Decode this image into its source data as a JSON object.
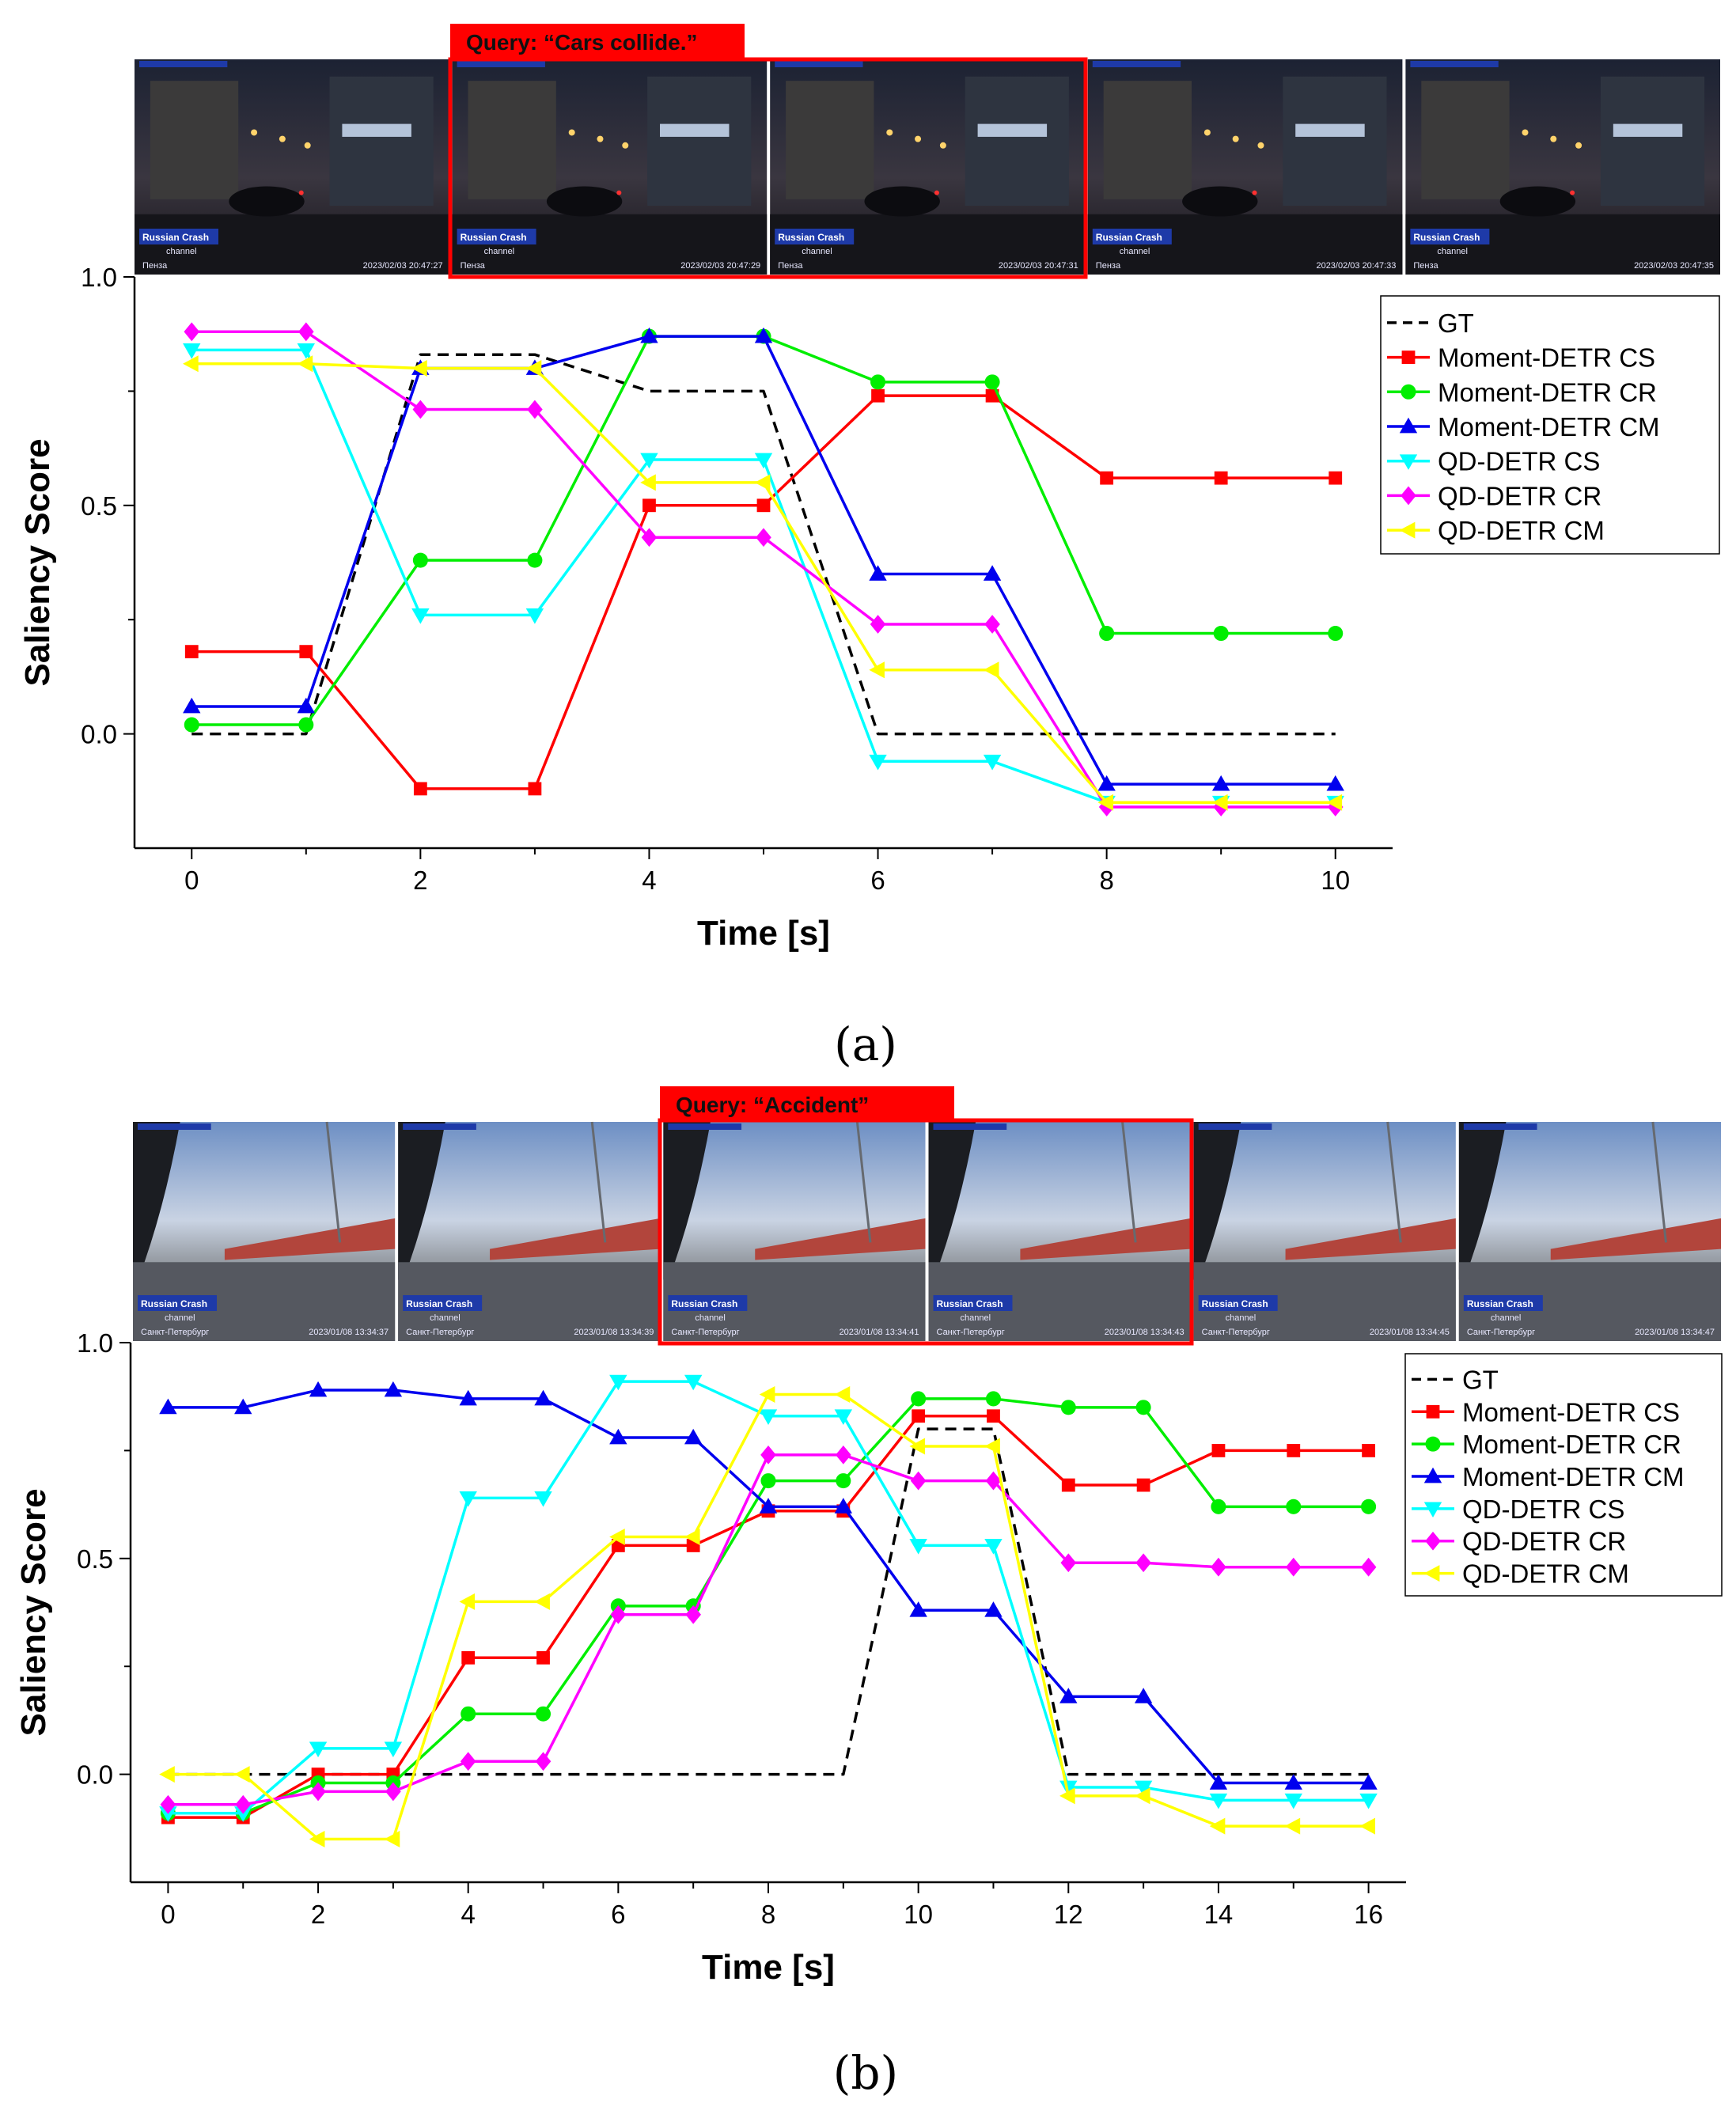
{
  "colors": {
    "GT": "#000000",
    "Moment-DETR CS": "#ff0000",
    "Moment-DETR CR": "#00ee00",
    "Moment-DETR CM": "#0000ee",
    "QD-DETR CS": "#00ffff",
    "QD-DETR CR": "#ff00ff",
    "QD-DETR CM": "#ffff00"
  },
  "panels": [
    {
      "label": "(a)",
      "query": "Query: “Cars collide.”",
      "frames": {
        "scene": "night",
        "brand": "Russian Crash",
        "channel": "channel",
        "location": "Пенза",
        "stamps": [
          "2023/02/03 20:47:27",
          "2023/02/03 20:47:29",
          "2023/02/03 20:47:31",
          "2023/02/03 20:47:33",
          "2023/02/03 20:47:35"
        ]
      }
    },
    {
      "label": "(b)",
      "query": "Query: “Accident”",
      "frames": {
        "scene": "day",
        "brand": "Russian Crash",
        "channel": "channel",
        "location": "Санкт-Петербург",
        "stamps": [
          "2023/01/08 13:34:37",
          "2023/01/08 13:34:39",
          "2023/01/08 13:34:41",
          "2023/01/08 13:34:43",
          "2023/01/08 13:34:45",
          "2023/01/08 13:34:47"
        ]
      }
    }
  ],
  "chart_data": [
    {
      "type": "line",
      "title": "",
      "xlabel": "Time [s]",
      "ylabel": "Saliency Score",
      "xlim": [
        -0.5,
        10.5
      ],
      "ylim": [
        -0.25,
        1.0
      ],
      "xticks": [
        0,
        2,
        4,
        6,
        8,
        10
      ],
      "yticks": [
        0.0,
        0.5,
        1.0
      ],
      "ytick_labels": [
        "0.0",
        "0.5",
        "1.0"
      ],
      "legend_position": "top-right",
      "x": [
        0,
        1,
        2,
        3,
        4,
        5,
        6,
        7,
        8,
        9,
        10
      ],
      "series": [
        {
          "name": "GT",
          "style": "dashed",
          "marker": "none",
          "values": [
            0,
            0,
            0.83,
            0.83,
            0.75,
            0.75,
            0,
            0,
            0,
            0,
            0
          ]
        },
        {
          "name": "Moment-DETR CS",
          "style": "solid",
          "marker": "square",
          "values": [
            0.18,
            0.18,
            -0.12,
            -0.12,
            0.5,
            0.5,
            0.74,
            0.74,
            0.56,
            0.56,
            0.56
          ]
        },
        {
          "name": "Moment-DETR CR",
          "style": "solid",
          "marker": "circle",
          "values": [
            0.02,
            0.02,
            0.38,
            0.38,
            0.87,
            0.87,
            0.77,
            0.77,
            0.22,
            0.22,
            0.22
          ]
        },
        {
          "name": "Moment-DETR CM",
          "style": "solid",
          "marker": "triangle-up",
          "values": [
            0.06,
            0.06,
            0.8,
            0.8,
            0.87,
            0.87,
            0.35,
            0.35,
            -0.11,
            -0.11,
            -0.11
          ]
        },
        {
          "name": "QD-DETR CS",
          "style": "solid",
          "marker": "triangle-down",
          "values": [
            0.84,
            0.84,
            0.26,
            0.26,
            0.6,
            0.6,
            -0.06,
            -0.06,
            -0.15,
            -0.15,
            -0.15
          ]
        },
        {
          "name": "QD-DETR CR",
          "style": "solid",
          "marker": "diamond",
          "values": [
            0.88,
            0.88,
            0.71,
            0.71,
            0.43,
            0.43,
            0.24,
            0.24,
            -0.16,
            -0.16,
            -0.16
          ]
        },
        {
          "name": "QD-DETR CM",
          "style": "solid",
          "marker": "triangle-left",
          "values": [
            0.81,
            0.81,
            0.8,
            0.8,
            0.55,
            0.55,
            0.14,
            0.14,
            -0.15,
            -0.15,
            -0.15
          ]
        }
      ]
    },
    {
      "type": "line",
      "title": "",
      "xlabel": "Time [s]",
      "ylabel": "Saliency Score",
      "xlim": [
        -0.5,
        16.5
      ],
      "ylim": [
        -0.25,
        1.0
      ],
      "xticks": [
        0,
        2,
        4,
        6,
        8,
        10,
        12,
        14,
        16
      ],
      "yticks": [
        0.0,
        0.5,
        1.0
      ],
      "ytick_labels": [
        "0.0",
        "0.5",
        "1.0"
      ],
      "legend_position": "top-right",
      "x": [
        0,
        1,
        2,
        3,
        4,
        5,
        6,
        7,
        8,
        9,
        10,
        11,
        12,
        13,
        14,
        15,
        16
      ],
      "series": [
        {
          "name": "GT",
          "style": "dashed",
          "marker": "none",
          "values": [
            0,
            0,
            0,
            0,
            0,
            0,
            0,
            0,
            0,
            0,
            0.8,
            0.8,
            0,
            0,
            0,
            0,
            0
          ]
        },
        {
          "name": "Moment-DETR CS",
          "style": "solid",
          "marker": "square",
          "values": [
            -0.1,
            -0.1,
            0,
            0,
            0.27,
            0.27,
            0.53,
            0.53,
            0.61,
            0.61,
            0.83,
            0.83,
            0.67,
            0.67,
            0.75,
            0.75,
            0.75
          ]
        },
        {
          "name": "Moment-DETR CR",
          "style": "solid",
          "marker": "circle",
          "values": [
            -0.09,
            -0.09,
            -0.02,
            -0.02,
            0.14,
            0.14,
            0.39,
            0.39,
            0.68,
            0.68,
            0.87,
            0.87,
            0.85,
            0.85,
            0.62,
            0.62,
            0.62
          ]
        },
        {
          "name": "Moment-DETR CM",
          "style": "solid",
          "marker": "triangle-up",
          "values": [
            0.85,
            0.85,
            0.89,
            0.89,
            0.87,
            0.87,
            0.78,
            0.78,
            0.62,
            0.62,
            0.38,
            0.38,
            0.18,
            0.18,
            -0.02,
            -0.02,
            -0.02
          ]
        },
        {
          "name": "QD-DETR CS",
          "style": "solid",
          "marker": "triangle-down",
          "values": [
            -0.09,
            -0.09,
            0.06,
            0.06,
            0.64,
            0.64,
            0.91,
            0.91,
            0.83,
            0.83,
            0.53,
            0.53,
            -0.03,
            -0.03,
            -0.06,
            -0.06,
            -0.06
          ]
        },
        {
          "name": "QD-DETR CR",
          "style": "solid",
          "marker": "diamond",
          "values": [
            -0.07,
            -0.07,
            -0.04,
            -0.04,
            0.03,
            0.03,
            0.37,
            0.37,
            0.74,
            0.74,
            0.68,
            0.68,
            0.49,
            0.49,
            0.48,
            0.48,
            0.48
          ]
        },
        {
          "name": "QD-DETR CM",
          "style": "solid",
          "marker": "triangle-left",
          "values": [
            0,
            0,
            -0.15,
            -0.15,
            0.4,
            0.4,
            0.55,
            0.55,
            0.88,
            0.88,
            0.76,
            0.76,
            -0.05,
            -0.05,
            -0.12,
            -0.12,
            -0.12
          ]
        }
      ]
    }
  ]
}
